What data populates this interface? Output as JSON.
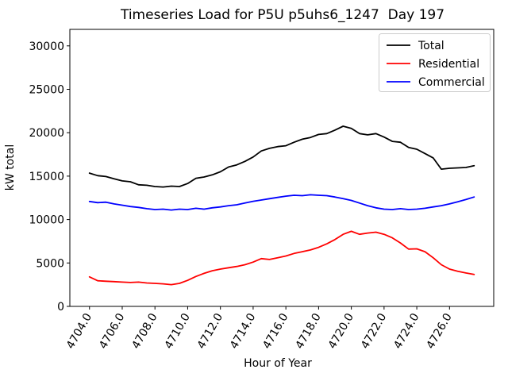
{
  "window": {
    "title": "Timeseries Load for P5U p5uhs6_1247  Day 197"
  },
  "chart_data": {
    "type": "line",
    "title": "Timeseries Load for P5U p5uhs6_1247  Day 197",
    "xlabel": "Hour of Year",
    "ylabel": "kW total",
    "xlim": [
      4702.8,
      4728.7
    ],
    "ylim": [
      0,
      31900
    ],
    "grid": false,
    "legend_position": "upper right",
    "x_tick_labels": [
      "4704.0",
      "4706.0",
      "4708.0",
      "4710.0",
      "4712.0",
      "4714.0",
      "4716.0",
      "4718.0",
      "4720.0",
      "4722.0",
      "4724.0",
      "4726.0"
    ],
    "x_ticks": [
      4704,
      4706,
      4708,
      4710,
      4712,
      4714,
      4716,
      4718,
      4720,
      4722,
      4724,
      4726
    ],
    "y_ticks": [
      0,
      5000,
      10000,
      15000,
      20000,
      25000,
      30000
    ],
    "y_tick_labels": [
      "0",
      "5000",
      "10000",
      "15000",
      "20000",
      "25000",
      "30000"
    ],
    "x": [
      4704.0,
      4704.5,
      4705.0,
      4705.5,
      4706.0,
      4706.5,
      4707.0,
      4707.5,
      4708.0,
      4708.5,
      4709.0,
      4709.5,
      4710.0,
      4710.5,
      4711.0,
      4711.5,
      4712.0,
      4712.5,
      4713.0,
      4713.5,
      4714.0,
      4714.5,
      4715.0,
      4715.5,
      4716.0,
      4716.5,
      4717.0,
      4717.5,
      4718.0,
      4718.5,
      4719.0,
      4719.5,
      4720.0,
      4720.5,
      4721.0,
      4721.5,
      4722.0,
      4722.5,
      4723.0,
      4723.5,
      4724.0,
      4724.5,
      4725.0,
      4725.5,
      4726.0,
      4726.5,
      4727.0,
      4727.5
    ],
    "series": [
      {
        "name": "Total",
        "color": "#000000",
        "values": [
          15350,
          15050,
          14950,
          14700,
          14450,
          14350,
          14000,
          13950,
          13800,
          13750,
          13850,
          13800,
          14150,
          14750,
          14900,
          15150,
          15500,
          16050,
          16300,
          16700,
          17200,
          17900,
          18200,
          18400,
          18500,
          18900,
          19250,
          19450,
          19800,
          19900,
          20300,
          20750,
          20500,
          19900,
          19750,
          19900,
          19500,
          19000,
          18900,
          18300,
          18100,
          17600,
          17100,
          15800,
          15900,
          15950,
          16000,
          16200
        ]
      },
      {
        "name": "Residential",
        "color": "#ff0000",
        "values": [
          3400,
          2950,
          2900,
          2850,
          2800,
          2750,
          2800,
          2700,
          2650,
          2600,
          2500,
          2650,
          3000,
          3450,
          3800,
          4100,
          4300,
          4450,
          4600,
          4800,
          5100,
          5500,
          5400,
          5600,
          5800,
          6100,
          6300,
          6500,
          6800,
          7200,
          7700,
          8300,
          8650,
          8300,
          8450,
          8550,
          8300,
          7900,
          7300,
          6600,
          6630,
          6300,
          5600,
          4800,
          4300,
          4050,
          3850,
          3670
        ]
      },
      {
        "name": "Commercial",
        "color": "#0000ff",
        "values": [
          12080,
          11950,
          12000,
          11800,
          11650,
          11500,
          11400,
          11250,
          11150,
          11200,
          11100,
          11200,
          11150,
          11300,
          11200,
          11350,
          11450,
          11600,
          11700,
          11900,
          12100,
          12250,
          12400,
          12550,
          12700,
          12800,
          12750,
          12850,
          12800,
          12750,
          12600,
          12400,
          12200,
          11900,
          11600,
          11350,
          11200,
          11150,
          11250,
          11150,
          11200,
          11300,
          11450,
          11600,
          11800,
          12050,
          12300,
          12600
        ]
      }
    ]
  },
  "legend": {
    "items": [
      {
        "label": "Total",
        "color": "#000000"
      },
      {
        "label": "Residential",
        "color": "#ff0000"
      },
      {
        "label": "Commercial",
        "color": "#0000ff"
      }
    ]
  },
  "colors": {
    "axes": "#000000",
    "background": "#ffffff",
    "legend_border": "#cccccc"
  }
}
